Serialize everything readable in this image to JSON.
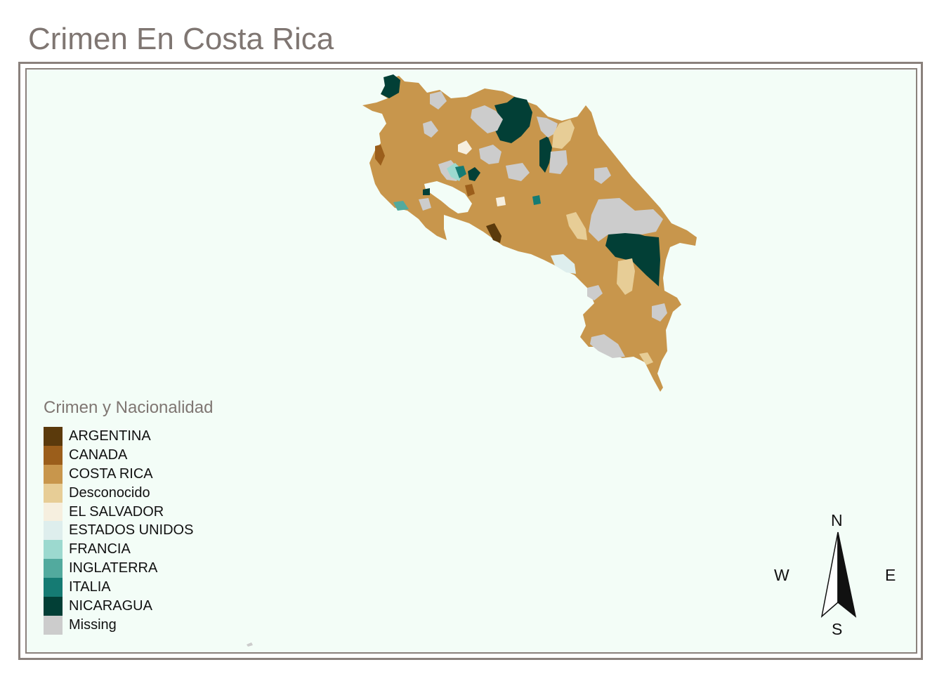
{
  "title": "Crimen En Costa Rica",
  "colors": {
    "frame": "#8a817c",
    "map_background": "#f3fdf7",
    "title": "#7f7672"
  },
  "legend": {
    "title": "Crimen y Nacionalidad",
    "items": [
      {
        "label": "ARGENTINA",
        "color": "#5b3a0c"
      },
      {
        "label": "CANADA",
        "color": "#9b5e1b"
      },
      {
        "label": "COSTA RICA",
        "color": "#c8964c"
      },
      {
        "label": "Desconocido",
        "color": "#e7cd96"
      },
      {
        "label": "EL SALVADOR",
        "color": "#f6efdf"
      },
      {
        "label": "ESTADOS UNIDOS",
        "color": "#deeeed"
      },
      {
        "label": "FRANCIA",
        "color": "#9cd9cf"
      },
      {
        "label": "INGLATERRA",
        "color": "#52aa9e"
      },
      {
        "label": "ITALIA",
        "color": "#157b73"
      },
      {
        "label": "NICARAGUA",
        "color": "#023f36"
      },
      {
        "label": "Missing",
        "color": "#cccccc"
      }
    ]
  },
  "compass": {
    "n": "N",
    "s": "S",
    "e": "E",
    "w": "W"
  }
}
